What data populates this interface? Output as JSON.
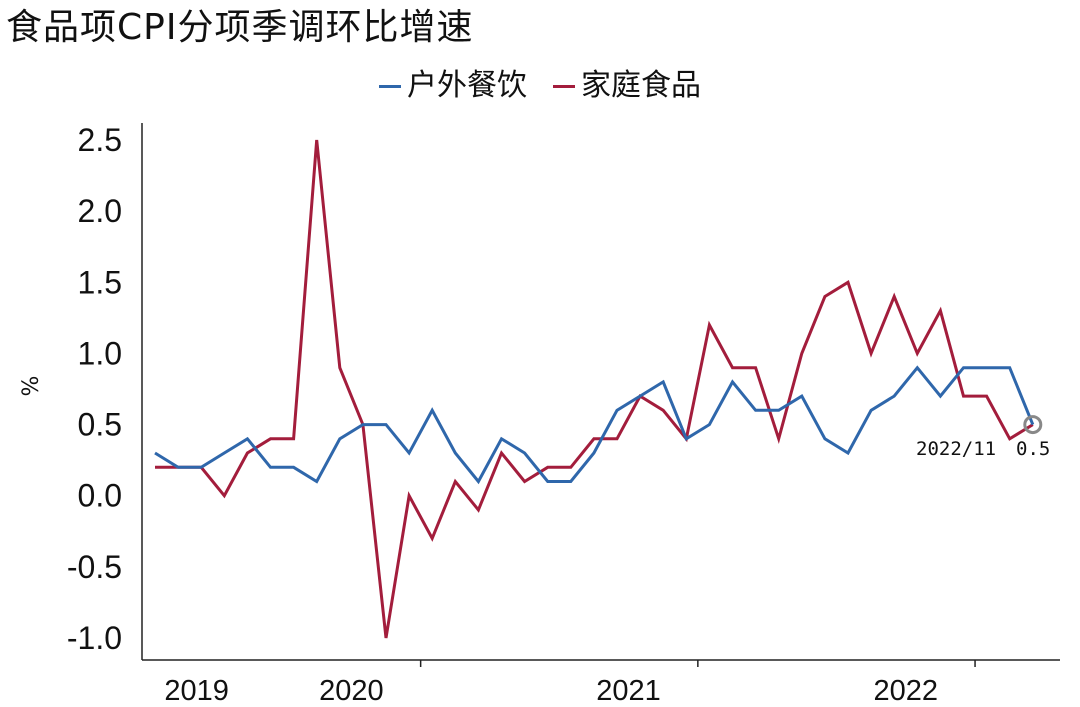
{
  "title": "食品项CPI分项季调环比增速",
  "chart_data": {
    "type": "line",
    "title": "食品项CPI分项季调环比增速",
    "ylabel": "%",
    "xlabel": "",
    "ylim": [
      -1.0,
      2.5
    ],
    "yticks": [
      "2.5",
      "2.0",
      "1.5",
      "1.0",
      "0.5",
      "0.0",
      "-0.5",
      "-1.0"
    ],
    "ytick_values": [
      2.5,
      2.0,
      1.5,
      1.0,
      0.5,
      0.0,
      -0.5,
      -1.0
    ],
    "xtick_labels": [
      "2019",
      "2020",
      "2021",
      "2022"
    ],
    "x_start": "2019-01",
    "x_end": "2022-11",
    "legend_position": "top-center",
    "grid": false,
    "series": [
      {
        "name": "户外餐饮",
        "color": "#2f67ab",
        "values": [
          0.3,
          0.2,
          0.2,
          0.3,
          0.4,
          0.2,
          0.2,
          0.1,
          0.4,
          0.5,
          0.5,
          0.3,
          0.6,
          0.3,
          0.1,
          0.4,
          0.3,
          0.1,
          0.1,
          0.3,
          0.6,
          0.7,
          0.8,
          0.4,
          0.5,
          0.8,
          0.6,
          0.6,
          0.7,
          0.4,
          0.3,
          0.6,
          0.7,
          0.9,
          0.7,
          0.9,
          0.9,
          0.9,
          0.5
        ]
      },
      {
        "name": "家庭食品",
        "color": "#a31d3c",
        "values": [
          0.2,
          0.2,
          0.2,
          0.0,
          0.3,
          0.4,
          0.4,
          2.5,
          0.9,
          0.5,
          -1.0,
          0.0,
          -0.3,
          0.1,
          -0.1,
          0.3,
          0.1,
          0.2,
          0.2,
          0.4,
          0.4,
          0.7,
          0.6,
          0.4,
          1.2,
          0.9,
          0.9,
          0.4,
          1.0,
          1.4,
          1.5,
          1.0,
          1.4,
          1.0,
          1.3,
          0.7,
          0.7,
          0.4,
          0.5
        ]
      }
    ],
    "annotation": {
      "date_label": "2022/11",
      "value_label": "0.5"
    }
  }
}
